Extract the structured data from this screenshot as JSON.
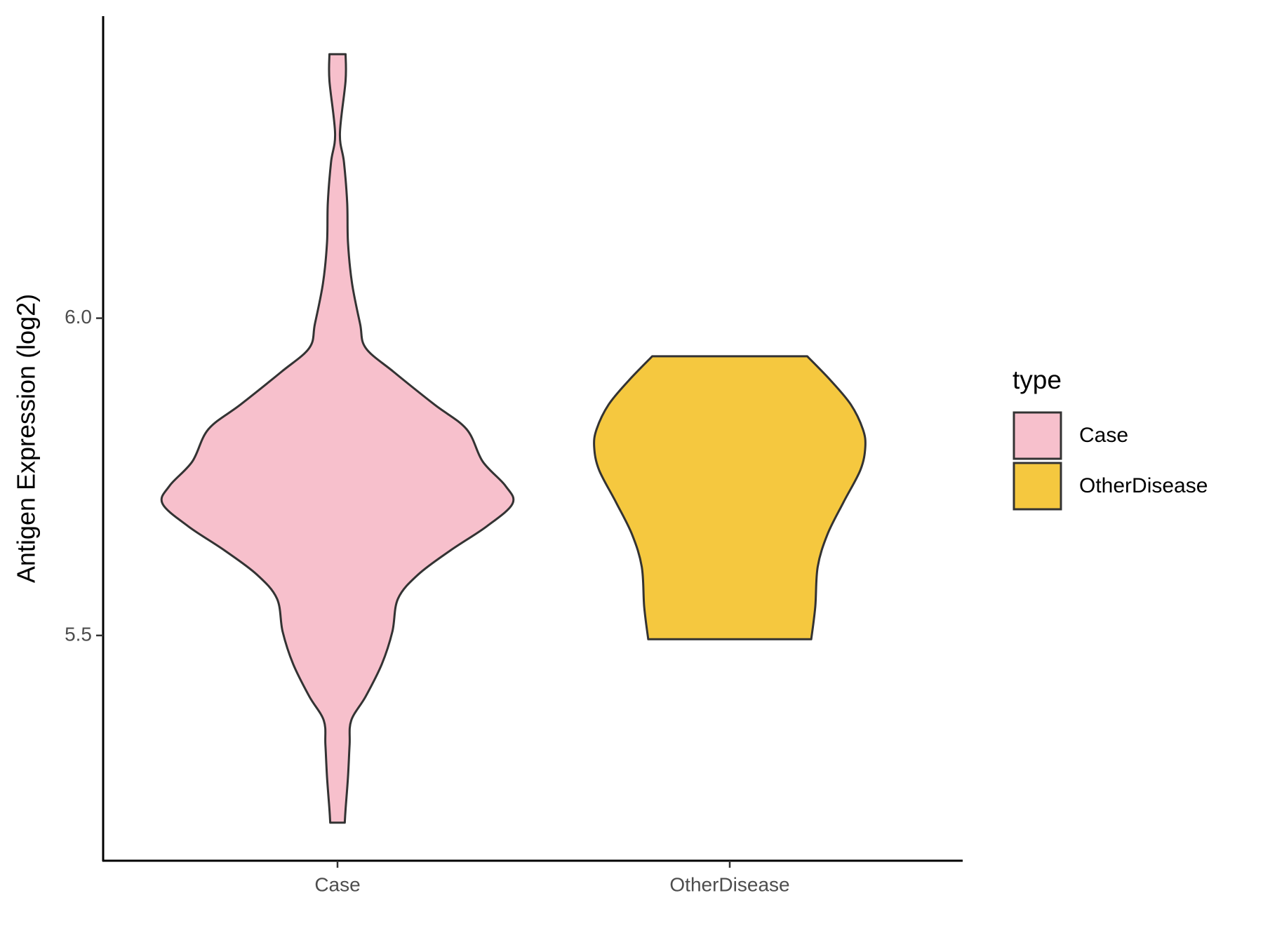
{
  "chart_data": {
    "type": "violin",
    "y_label": "Antigen Expression (log2)",
    "categories": [
      "Case",
      "OtherDisease"
    ],
    "legend_title": "type",
    "legend_position": "right",
    "ylim": [
      5.145,
      6.476
    ],
    "yticks": [
      5.5,
      {
        "value": 6,
        "label": "6.0"
      }
    ],
    "series": [
      {
        "name": "Case",
        "color": "#f7c0cc",
        "y": [
          6.416,
          6.374,
          6.291,
          6.246,
          6.182,
          6.119,
          6.055,
          5.991,
          5.953,
          5.915,
          5.864,
          5.825,
          5.774,
          5.736,
          5.708,
          5.672,
          5.634,
          5.596,
          5.558,
          5.506,
          5.455,
          5.404,
          5.366,
          5.328,
          5.277,
          5.226,
          5.205
        ],
        "density": [
          0.1,
          0.1,
          0.03,
          0.08,
          0.12,
          0.13,
          0.18,
          0.28,
          0.35,
          0.7,
          1.2,
          1.6,
          1.8,
          2.08,
          2.17,
          1.85,
          1.4,
          1.0,
          0.75,
          0.68,
          0.55,
          0.35,
          0.17,
          0.15,
          0.13,
          0.1,
          0.09
        ]
      },
      {
        "name": "OtherDisease",
        "color": "#f5c83f",
        "y": [
          5.94,
          5.902,
          5.864,
          5.825,
          5.797,
          5.761,
          5.71,
          5.659,
          5.608,
          5.545,
          5.494
        ],
        "density": [
          0.96,
          1.25,
          1.5,
          1.65,
          1.68,
          1.62,
          1.41,
          1.21,
          1.09,
          1.06,
          1.01
        ]
      }
    ]
  }
}
